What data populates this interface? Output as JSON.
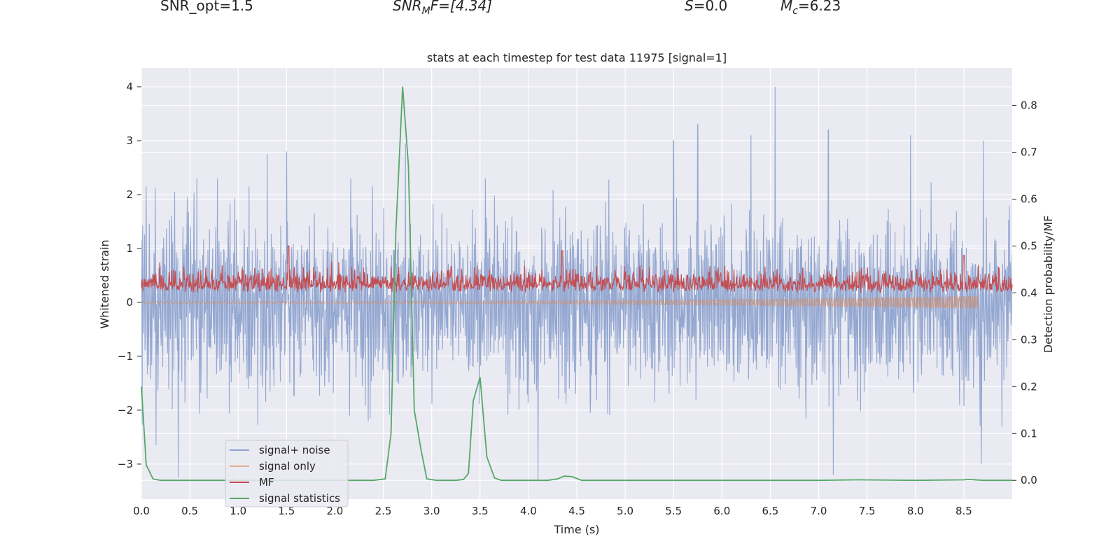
{
  "header": {
    "snr_opt": "SNR_opt=1.5",
    "snr_mf_main": "SNR",
    "snr_mf_sub": "M",
    "snr_mf_rest": "F=[4.34]",
    "s_label": "S",
    "s_value": "=0.0",
    "mc_main": "M",
    "mc_sub": "c",
    "mc_value": "=6.23"
  },
  "colors": {
    "background": "#eaeaf2",
    "grid": "#ffffff",
    "noise": "#8ea3cf",
    "signal_only": "#dd8452",
    "mf": "#c44e52",
    "stats": "#55a868"
  },
  "chart_data": {
    "type": "line",
    "title": "stats at each timestep for test data 11975 [signal=1]",
    "xlabel": "Time (s)",
    "ylabel": "Whitened strain",
    "ylabel_right": "Detection probability/MF",
    "xlim": [
      0,
      9
    ],
    "ylim": [
      -3.65,
      4.35
    ],
    "ylim_right": [
      -0.04,
      0.88
    ],
    "xticks": [
      "0.0",
      "0.5",
      "1.0",
      "1.5",
      "2.0",
      "2.5",
      "3.0",
      "3.5",
      "4.0",
      "4.5",
      "5.0",
      "5.5",
      "6.0",
      "6.5",
      "7.0",
      "7.5",
      "8.0",
      "8.5"
    ],
    "yticks": [
      "−3",
      "−2",
      "−1",
      "0",
      "1",
      "2",
      "3",
      "4"
    ],
    "yticks_right": [
      "0.0",
      "0.1",
      "0.2",
      "0.3",
      "0.4",
      "0.5",
      "0.6",
      "0.7",
      "0.8"
    ],
    "grid": true,
    "legend_position": "lower-left",
    "series": [
      {
        "name": "signal+ noise",
        "x_range": [
          0,
          9
        ],
        "envelope_upper_typical": 1.5,
        "envelope_lower_typical": -1.5,
        "spikes": [
          {
            "x": 0.38,
            "y": -3.25
          },
          {
            "x": 1.3,
            "y": 2.75
          },
          {
            "x": 1.5,
            "y": 2.8
          },
          {
            "x": 2.73,
            "y": 2.95
          },
          {
            "x": 4.1,
            "y": -3.3
          },
          {
            "x": 5.75,
            "y": 3.3
          },
          {
            "x": 6.55,
            "y": 4.0
          },
          {
            "x": 6.3,
            "y": 3.1
          },
          {
            "x": 7.1,
            "y": 3.2
          },
          {
            "x": 7.15,
            "y": -3.2
          },
          {
            "x": 8.7,
            "y": 3.0
          },
          {
            "x": 8.68,
            "y": -3.0
          },
          {
            "x": 0.15,
            "y": -2.65
          },
          {
            "x": 7.95,
            "y": 3.1
          },
          {
            "x": 5.5,
            "y": 3.0
          }
        ]
      },
      {
        "name": "signal only",
        "x_range": [
          0,
          8.65
        ],
        "description_values": {
          "start_amplitude": 0.02,
          "end_amplitude": 0.12
        }
      },
      {
        "name": "MF",
        "axis": "right",
        "x_range": [
          0,
          9
        ],
        "base": 0.4,
        "typical_max": 0.46,
        "peaks": [
          {
            "x": 1.52,
            "y": 0.5
          },
          {
            "x": 4.35,
            "y": 0.49
          },
          {
            "x": 8.5,
            "y": 0.48
          }
        ]
      },
      {
        "name": "signal statistics",
        "axis": "right",
        "x": [
          0,
          0.05,
          0.12,
          0.2,
          0.3,
          0.5,
          1,
          1.5,
          2,
          2.4,
          2.52,
          2.58,
          2.63,
          2.7,
          2.76,
          2.82,
          2.89,
          2.95,
          3.05,
          3.25,
          3.33,
          3.38,
          3.43,
          3.5,
          3.57,
          3.65,
          3.72,
          3.8,
          4,
          4.2,
          4.3,
          4.37,
          4.45,
          4.55,
          5,
          6,
          7,
          7.4,
          8,
          8.5,
          8.55,
          8.7,
          9
        ],
        "y": [
          0.2,
          0.033,
          0.003,
          0,
          0,
          0,
          0,
          0,
          0,
          0,
          0.003,
          0.1,
          0.53,
          0.84,
          0.67,
          0.15,
          0.065,
          0.003,
          0,
          0,
          0.002,
          0.015,
          0.17,
          0.22,
          0.05,
          0.005,
          0,
          0,
          0,
          0,
          0.003,
          0.009,
          0.008,
          0,
          0,
          0,
          0,
          0.001,
          0,
          0.001,
          0.002,
          0,
          0
        ]
      }
    ]
  }
}
